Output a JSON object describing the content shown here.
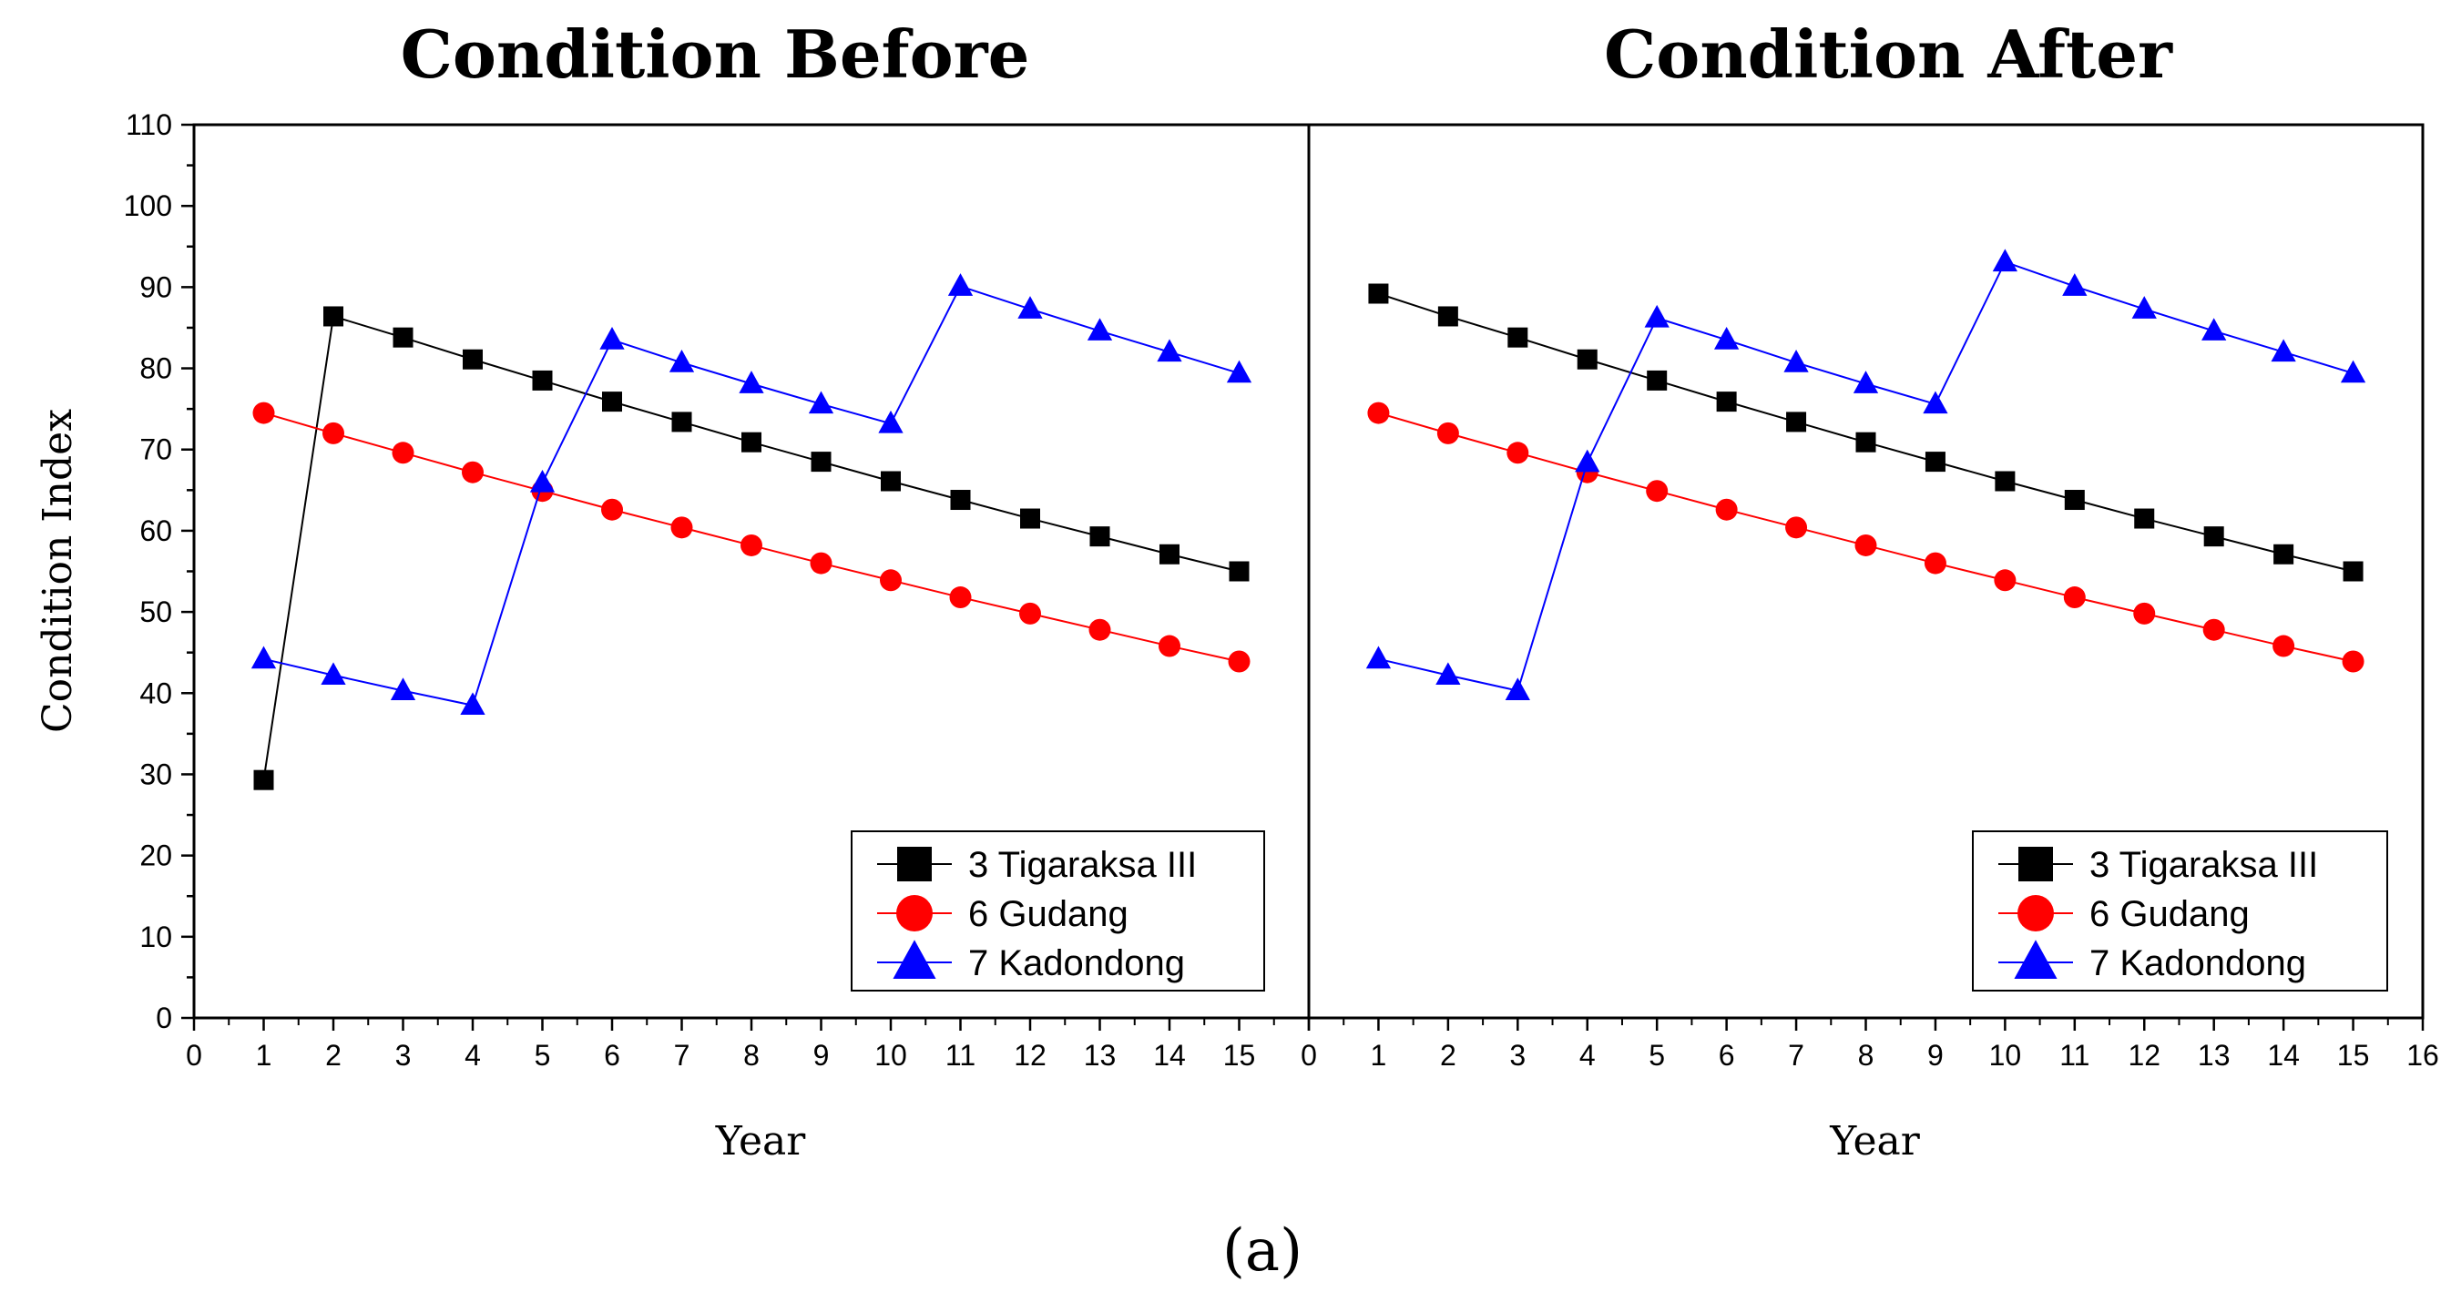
{
  "chart_data": {
    "type": "line",
    "ylabel": "Condition Index",
    "caption": "(a)",
    "ylim": [
      0,
      110
    ],
    "yticks": [
      0,
      10,
      20,
      30,
      40,
      50,
      60,
      70,
      80,
      90,
      100,
      110
    ],
    "panels": [
      {
        "title": "Condition Before",
        "xlabel": "Year",
        "xlim": [
          0,
          16
        ],
        "xticks": [
          0,
          1,
          2,
          3,
          4,
          5,
          6,
          7,
          8,
          9,
          10,
          11,
          12,
          13,
          14,
          15
        ],
        "series": [
          {
            "name": "3 Tigaraksa III",
            "marker": "square",
            "color": "#000000",
            "x": [
              1,
              2,
              3,
              4,
              5,
              6,
              7,
              8,
              9,
              10,
              11,
              12,
              13,
              14,
              15
            ],
            "y": [
              29.3,
              86.4,
              83.8,
              81.1,
              78.5,
              75.9,
              73.4,
              70.9,
              68.5,
              66.1,
              63.8,
              61.5,
              59.3,
              57.1,
              55.0
            ]
          },
          {
            "name": "6 Gudang",
            "marker": "circle",
            "color": "#ff0000",
            "x": [
              1,
              2,
              3,
              4,
              5,
              6,
              7,
              8,
              9,
              10,
              11,
              12,
              13,
              14,
              15
            ],
            "y": [
              74.5,
              72.0,
              69.6,
              67.2,
              64.9,
              62.6,
              60.4,
              58.2,
              56.0,
              53.9,
              51.8,
              49.8,
              47.8,
              45.8,
              43.9
            ]
          },
          {
            "name": "7 Kadondong",
            "marker": "triangle",
            "color": "#0000ff",
            "x": [
              1,
              2,
              3,
              4,
              5,
              6,
              7,
              8,
              9,
              10,
              11,
              12,
              13,
              14,
              15
            ],
            "y": [
              44.2,
              42.2,
              40.3,
              38.5,
              65.9,
              83.5,
              80.7,
              78.1,
              75.6,
              73.2,
              90.1,
              87.3,
              84.6,
              82.0,
              79.4
            ]
          }
        ],
        "legend_position": "bottom-right"
      },
      {
        "title": "Condition After",
        "xlabel": "Year",
        "xlim": [
          0,
          16
        ],
        "xticks": [
          0,
          1,
          2,
          3,
          4,
          5,
          6,
          7,
          8,
          9,
          10,
          11,
          12,
          13,
          14,
          15,
          16
        ],
        "series": [
          {
            "name": "3 Tigaraksa III",
            "marker": "square",
            "color": "#000000",
            "x": [
              1,
              2,
              3,
              4,
              5,
              6,
              7,
              8,
              9,
              10,
              11,
              12,
              13,
              14,
              15
            ],
            "y": [
              89.2,
              86.4,
              83.8,
              81.1,
              78.5,
              75.9,
              73.4,
              70.9,
              68.5,
              66.1,
              63.8,
              61.5,
              59.3,
              57.1,
              55.0
            ]
          },
          {
            "name": "6 Gudang",
            "marker": "circle",
            "color": "#ff0000",
            "x": [
              1,
              2,
              3,
              4,
              5,
              6,
              7,
              8,
              9,
              10,
              11,
              12,
              13,
              14,
              15
            ],
            "y": [
              74.5,
              72.0,
              69.6,
              67.2,
              64.9,
              62.6,
              60.4,
              58.2,
              56.0,
              53.9,
              51.8,
              49.8,
              47.8,
              45.8,
              43.9
            ]
          },
          {
            "name": "7 Kadondong",
            "marker": "triangle",
            "color": "#0000ff",
            "x": [
              1,
              2,
              3,
              4,
              5,
              6,
              7,
              8,
              9,
              10,
              11,
              12,
              13,
              14,
              15
            ],
            "y": [
              44.2,
              42.2,
              40.3,
              68.4,
              86.2,
              83.5,
              80.7,
              78.1,
              75.6,
              93.1,
              90.1,
              87.3,
              84.6,
              82.0,
              79.4
            ]
          }
        ],
        "legend_position": "bottom-right"
      }
    ]
  }
}
